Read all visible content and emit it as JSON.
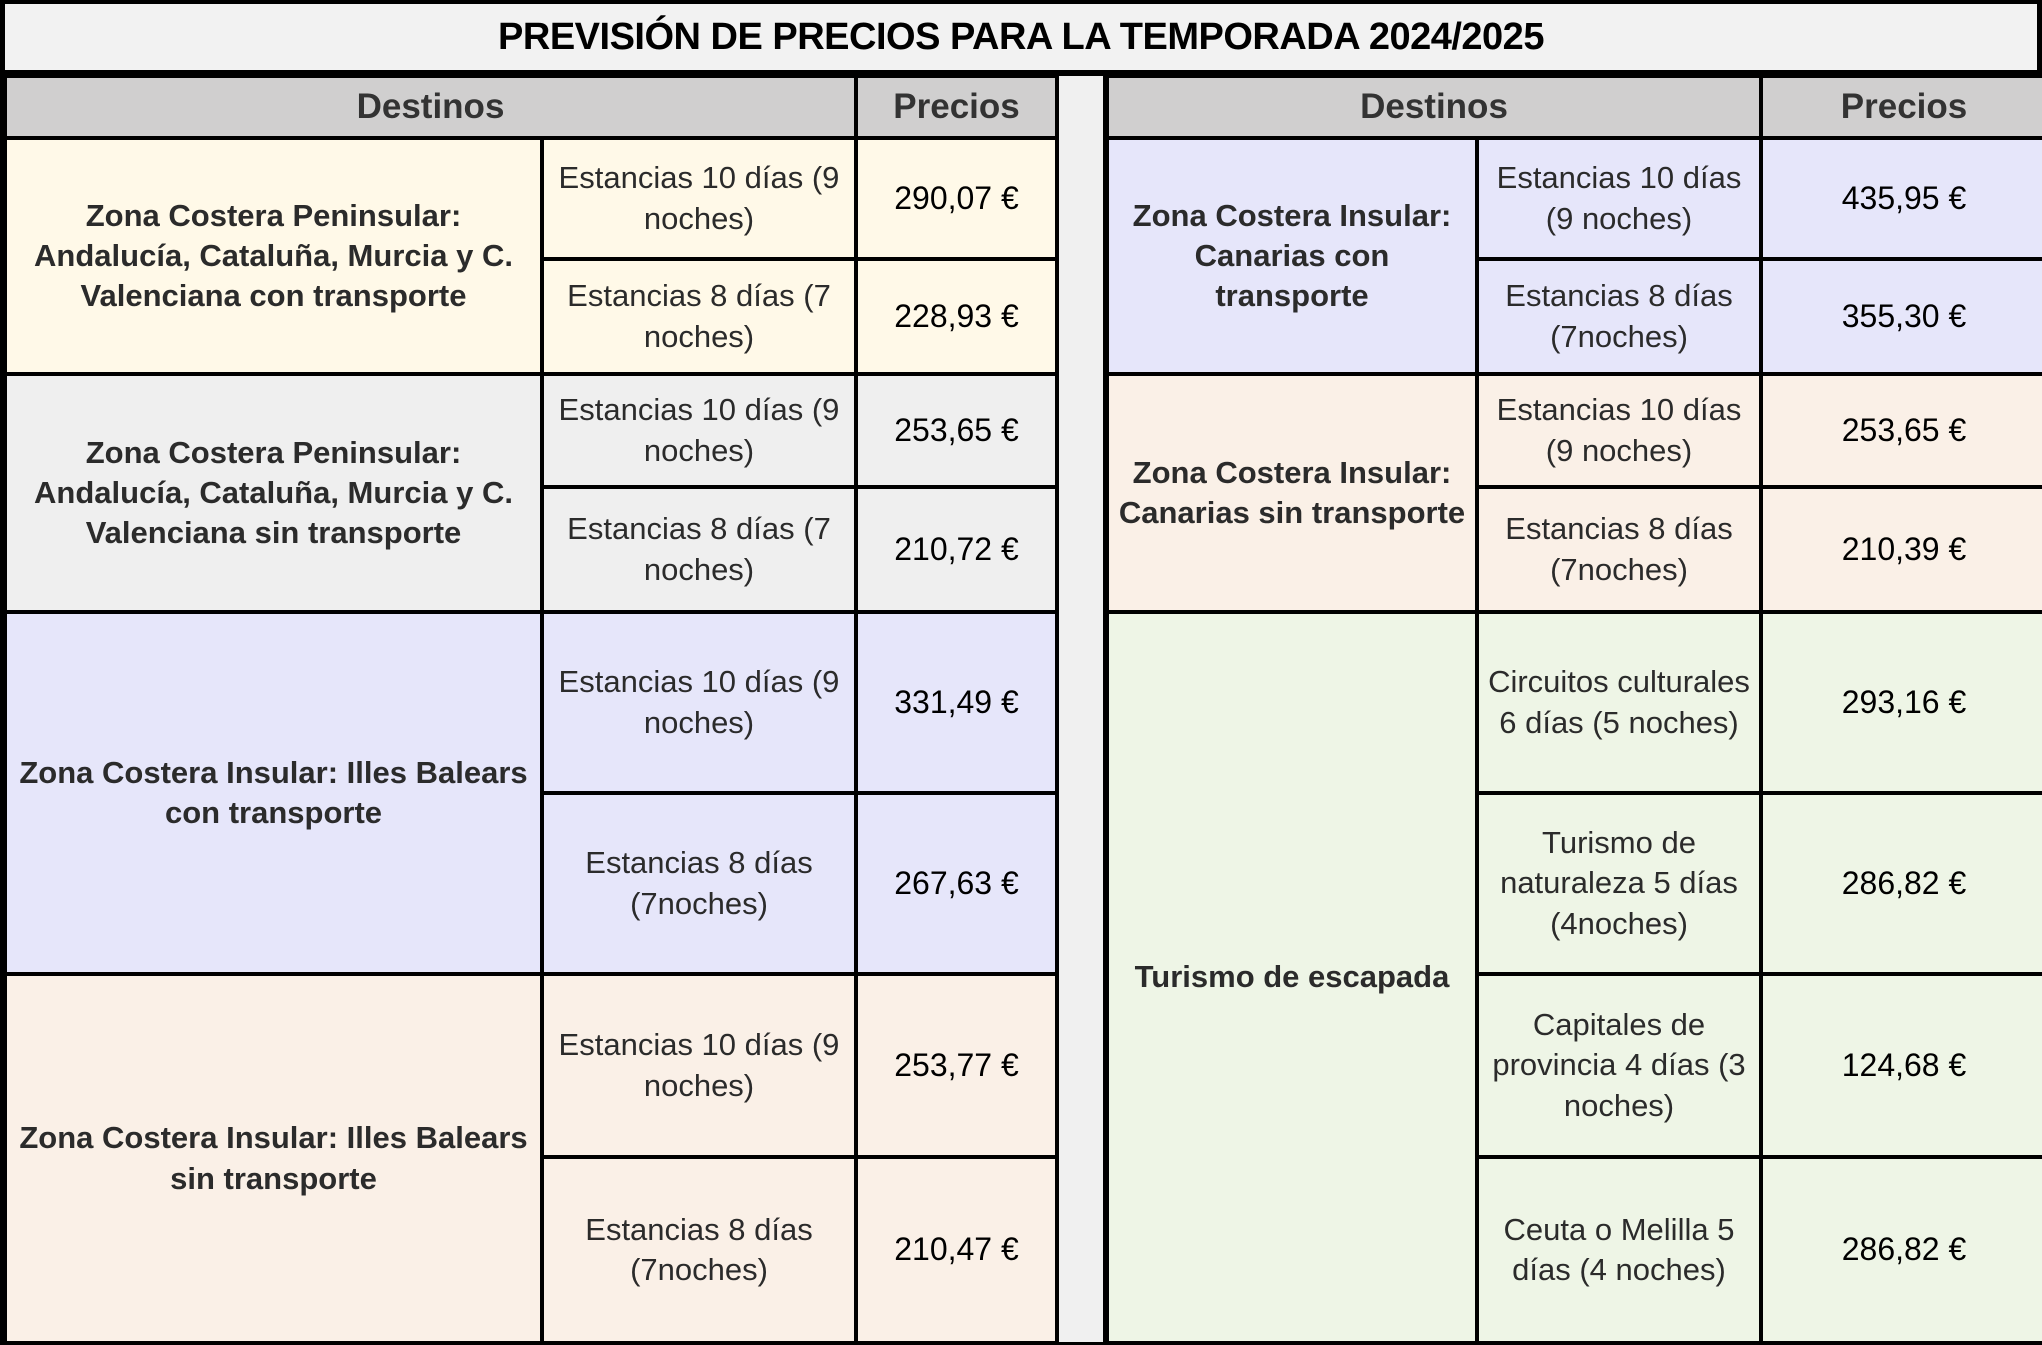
{
  "title": "PREVISIÓN DE PRECIOS PARA LA TEMPORADA 2024/2025",
  "headers": {
    "destinos": "Destinos",
    "precios": "Precios"
  },
  "colors": {
    "yellow": "#fff9e8",
    "gray": "#efefef",
    "lavender": "#e6e6fa",
    "peach": "#faf0e7",
    "green": "#eef5e6",
    "header": "#d0cfcf"
  },
  "left": [
    {
      "zone": "Zona Costera Peninsular: Andalucía, Cataluña, Murcia y C. Valenciana con transporte",
      "rows": [
        {
          "stay": "Estancias 10 días (9 noches)",
          "price": "290,07 €"
        },
        {
          "stay": "Estancias 8 días (7 noches)",
          "price": "228,93 €"
        }
      ]
    },
    {
      "zone": "Zona Costera Peninsular: Andalucía, Cataluña, Murcia y C. Valenciana sin transporte",
      "rows": [
        {
          "stay": "Estancias 10 días (9 noches)",
          "price": "253,65 €"
        },
        {
          "stay": "Estancias 8 días (7 noches)",
          "price": "210,72 €"
        }
      ]
    },
    {
      "zone": "Zona Costera Insular: Illes Balears con transporte",
      "rows": [
        {
          "stay": "Estancias 10 días (9 noches)",
          "price": "331,49 €"
        },
        {
          "stay": "Estancias 8 días (7noches)",
          "price": "267,63 €"
        }
      ]
    },
    {
      "zone": "Zona Costera Insular: Illes Balears sin transporte",
      "rows": [
        {
          "stay": "Estancias 10 días (9 noches)",
          "price": "253,77 €"
        },
        {
          "stay": "Estancias 8 días (7noches)",
          "price": "210,47 €"
        }
      ]
    }
  ],
  "right": [
    {
      "zone": "Zona Costera Insular: Canarias con transporte",
      "rows": [
        {
          "stay": "Estancias 10 días (9 noches)",
          "price": "435,95 €"
        },
        {
          "stay": "Estancias 8 días (7noches)",
          "price": "355,30 €"
        }
      ]
    },
    {
      "zone": "Zona Costera Insular: Canarias sin transporte",
      "rows": [
        {
          "stay": "Estancias 10 días (9 noches)",
          "price": "253,65 €"
        },
        {
          "stay": "Estancias 8 días (7noches)",
          "price": "210,39 €"
        }
      ]
    },
    {
      "zone": "Turismo de escapada",
      "rows": [
        {
          "stay": "Circuitos culturales 6 días (5 noches)",
          "price": "293,16 €"
        },
        {
          "stay": "Turismo de naturaleza 5 días (4noches)",
          "price": "286,82 €"
        },
        {
          "stay": "Capitales de provincia 4 días (3 noches)",
          "price": "124,68 €"
        },
        {
          "stay": "Ceuta o Melilla 5 días (4 noches)",
          "price": "286,82 €"
        }
      ]
    }
  ]
}
